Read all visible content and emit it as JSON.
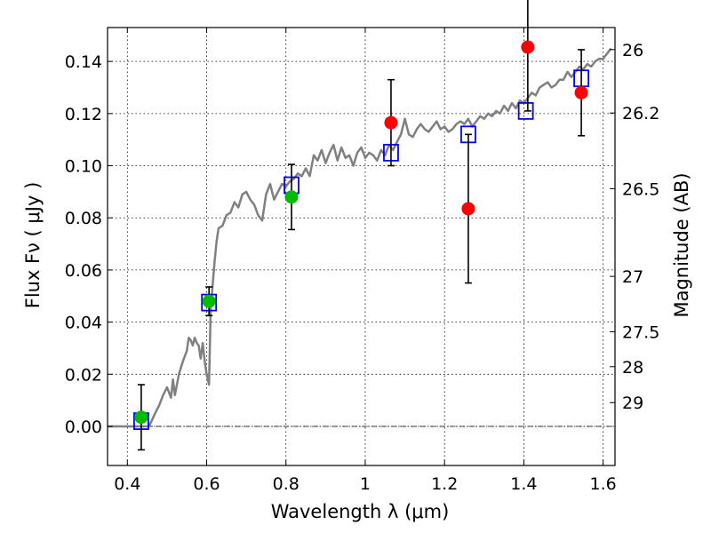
{
  "chart_data": {
    "type": "scatter",
    "x_axis": {
      "label": "Wavelength  λ (μm)",
      "xlim": [
        0.35,
        1.63
      ],
      "ticks": [
        0.4,
        0.6,
        0.8,
        1.0,
        1.2,
        1.4,
        1.6
      ],
      "tick_labels": [
        "0.4",
        "0.6",
        "0.8",
        "1",
        "1.2",
        "1.4",
        "1.6"
      ]
    },
    "y_axis": {
      "label": "Flux  Fν  ( μJy )",
      "ylim": [
        -0.015,
        0.153
      ],
      "ticks": [
        0.0,
        0.02,
        0.04,
        0.06,
        0.08,
        0.1,
        0.12,
        0.14
      ],
      "tick_labels": [
        "0.00",
        "0.02",
        "0.04",
        "0.06",
        "0.08",
        "0.10",
        "0.12",
        "0.14"
      ]
    },
    "y2_axis": {
      "label": "Magnitude (AB)",
      "ticks": [
        26,
        26.2,
        26.5,
        27,
        27.5,
        28,
        29
      ],
      "tick_labels": [
        "26",
        "26.2",
        "26.5",
        "27",
        "27.5",
        "28",
        "29"
      ]
    },
    "grid": true,
    "zero_line": true,
    "series": [
      {
        "marker": "circle",
        "color": "#00bb00",
        "points": [
          {
            "x": 0.435,
            "y": 0.0035,
            "err": 0.0125
          },
          {
            "x": 0.606,
            "y": 0.048,
            "err": 0.0055
          },
          {
            "x": 0.814,
            "y": 0.088,
            "err": 0.0125
          }
        ]
      },
      {
        "marker": "circle",
        "color": "#ff0000",
        "points": [
          {
            "x": 1.065,
            "y": 0.1165,
            "err": 0.0165
          },
          {
            "x": 1.26,
            "y": 0.0835,
            "err": 0.0285
          },
          {
            "x": 1.41,
            "y": 0.1455,
            "err": 0.0245
          },
          {
            "x": 1.545,
            "y": 0.128,
            "err": 0.0165
          }
        ]
      },
      {
        "marker": "square",
        "color": "#0000ff",
        "points": [
          {
            "x": 0.435,
            "y": 0.002
          },
          {
            "x": 0.606,
            "y": 0.0475
          },
          {
            "x": 0.814,
            "y": 0.0925
          },
          {
            "x": 1.065,
            "y": 0.105
          },
          {
            "x": 1.26,
            "y": 0.112
          },
          {
            "x": 1.405,
            "y": 0.121
          },
          {
            "x": 1.545,
            "y": 0.1335
          }
        ]
      },
      {
        "marker": "line",
        "color": "#808080",
        "points": [
          [
            0.35,
            0.0
          ],
          [
            0.455,
            0.0
          ],
          [
            0.47,
            0.005
          ],
          [
            0.48,
            0.008
          ],
          [
            0.49,
            0.012
          ],
          [
            0.5,
            0.015
          ],
          [
            0.51,
            0.011
          ],
          [
            0.515,
            0.018
          ],
          [
            0.52,
            0.012
          ],
          [
            0.53,
            0.02
          ],
          [
            0.54,
            0.025
          ],
          [
            0.545,
            0.027
          ],
          [
            0.55,
            0.029
          ],
          [
            0.555,
            0.034
          ],
          [
            0.56,
            0.033
          ],
          [
            0.565,
            0.031
          ],
          [
            0.57,
            0.034
          ],
          [
            0.575,
            0.032
          ],
          [
            0.58,
            0.031
          ],
          [
            0.585,
            0.026
          ],
          [
            0.59,
            0.032
          ],
          [
            0.595,
            0.025
          ],
          [
            0.6,
            0.02
          ],
          [
            0.603,
            0.018
          ],
          [
            0.606,
            0.016
          ],
          [
            0.608,
            0.03
          ],
          [
            0.61,
            0.045
          ],
          [
            0.62,
            0.063
          ],
          [
            0.625,
            0.071
          ],
          [
            0.63,
            0.076
          ],
          [
            0.64,
            0.077
          ],
          [
            0.65,
            0.081
          ],
          [
            0.66,
            0.082
          ],
          [
            0.67,
            0.086
          ],
          [
            0.68,
            0.084
          ],
          [
            0.69,
            0.089
          ],
          [
            0.7,
            0.09
          ],
          [
            0.71,
            0.087
          ],
          [
            0.72,
            0.085
          ],
          [
            0.73,
            0.081
          ],
          [
            0.74,
            0.079
          ],
          [
            0.75,
            0.089
          ],
          [
            0.76,
            0.093
          ],
          [
            0.77,
            0.087
          ],
          [
            0.78,
            0.09
          ],
          [
            0.79,
            0.093
          ],
          [
            0.8,
            0.092
          ],
          [
            0.81,
            0.094
          ],
          [
            0.82,
            0.095
          ],
          [
            0.83,
            0.097
          ],
          [
            0.84,
            0.096
          ],
          [
            0.85,
            0.099
          ],
          [
            0.86,
            0.096
          ],
          [
            0.87,
            0.104
          ],
          [
            0.88,
            0.102
          ],
          [
            0.89,
            0.106
          ],
          [
            0.9,
            0.101
          ],
          [
            0.91,
            0.105
          ],
          [
            0.92,
            0.108
          ],
          [
            0.93,
            0.102
          ],
          [
            0.94,
            0.107
          ],
          [
            0.95,
            0.103
          ],
          [
            0.96,
            0.104
          ],
          [
            0.97,
            0.1
          ],
          [
            0.98,
            0.105
          ],
          [
            0.99,
            0.107
          ],
          [
            1.0,
            0.103
          ],
          [
            1.01,
            0.105
          ],
          [
            1.02,
            0.104
          ],
          [
            1.03,
            0.102
          ],
          [
            1.04,
            0.106
          ],
          [
            1.05,
            0.104
          ],
          [
            1.06,
            0.108
          ],
          [
            1.07,
            0.106
          ],
          [
            1.08,
            0.109
          ],
          [
            1.09,
            0.112
          ],
          [
            1.1,
            0.118
          ],
          [
            1.11,
            0.112
          ],
          [
            1.12,
            0.111
          ],
          [
            1.13,
            0.114
          ],
          [
            1.14,
            0.116
          ],
          [
            1.15,
            0.114
          ],
          [
            1.16,
            0.113
          ],
          [
            1.17,
            0.115
          ],
          [
            1.18,
            0.117
          ],
          [
            1.19,
            0.114
          ],
          [
            1.2,
            0.115
          ],
          [
            1.21,
            0.113
          ],
          [
            1.22,
            0.114
          ],
          [
            1.23,
            0.116
          ],
          [
            1.24,
            0.117
          ],
          [
            1.25,
            0.116
          ],
          [
            1.26,
            0.118
          ],
          [
            1.27,
            0.115
          ],
          [
            1.28,
            0.117
          ],
          [
            1.29,
            0.119
          ],
          [
            1.3,
            0.118
          ],
          [
            1.31,
            0.12
          ],
          [
            1.32,
            0.119
          ],
          [
            1.33,
            0.121
          ],
          [
            1.34,
            0.12
          ],
          [
            1.35,
            0.123
          ],
          [
            1.36,
            0.121
          ],
          [
            1.37,
            0.124
          ],
          [
            1.38,
            0.122
          ],
          [
            1.39,
            0.125
          ],
          [
            1.4,
            0.124
          ],
          [
            1.41,
            0.126
          ],
          [
            1.42,
            0.128
          ],
          [
            1.43,
            0.127
          ],
          [
            1.44,
            0.13
          ],
          [
            1.45,
            0.131
          ],
          [
            1.46,
            0.132
          ],
          [
            1.47,
            0.13
          ],
          [
            1.48,
            0.131
          ],
          [
            1.49,
            0.133
          ],
          [
            1.5,
            0.133
          ],
          [
            1.51,
            0.136
          ],
          [
            1.52,
            0.134
          ],
          [
            1.53,
            0.136
          ],
          [
            1.54,
            0.138
          ],
          [
            1.55,
            0.137
          ],
          [
            1.56,
            0.139
          ],
          [
            1.57,
            0.138
          ],
          [
            1.58,
            0.14
          ],
          [
            1.59,
            0.141
          ],
          [
            1.6,
            0.141
          ],
          [
            1.61,
            0.143
          ],
          [
            1.62,
            0.145
          ]
        ]
      }
    ]
  }
}
